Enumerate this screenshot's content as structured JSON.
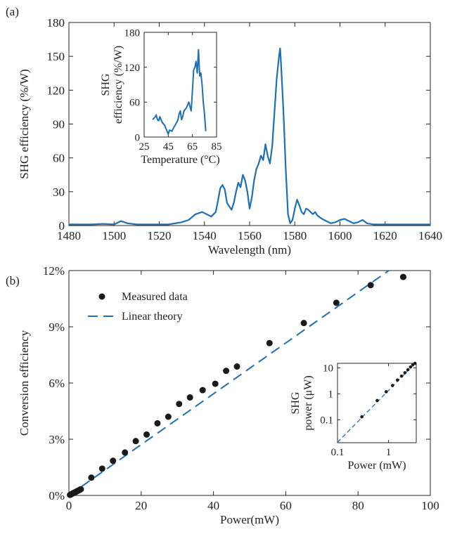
{
  "panel_labels": {
    "a": "(a)",
    "b": "(b)"
  },
  "colors": {
    "series": "#1f6fb4",
    "marker": "#1a1a1a",
    "axis": "#262626"
  },
  "chart_data": [
    {
      "id": "a-main",
      "type": "line",
      "xlabel": "Wavelength (nm)",
      "ylabel": "SHG efficiency (%/W)",
      "xlim": [
        1480,
        1640
      ],
      "ylim": [
        0,
        180
      ],
      "xticks": [
        1480,
        1500,
        1520,
        1540,
        1560,
        1580,
        1600,
        1620,
        1640
      ],
      "yticks": [
        0,
        30,
        60,
        90,
        120,
        150,
        180
      ],
      "grid": false,
      "series": [
        {
          "x": [
            1480,
            1485,
            1490,
            1495,
            1500,
            1503,
            1506,
            1510,
            1515,
            1520,
            1524,
            1527,
            1530,
            1533,
            1536,
            1539,
            1541,
            1543,
            1545,
            1546,
            1547,
            1548,
            1549,
            1550,
            1552,
            1553,
            1554,
            1555,
            1556,
            1557,
            1558,
            1559,
            1560,
            1561,
            1562,
            1563,
            1564,
            1565,
            1566,
            1567,
            1568,
            1569,
            1570,
            1571,
            1572,
            1573,
            1573.5,
            1574,
            1575,
            1576,
            1577,
            1578,
            1579,
            1580,
            1581,
            1582,
            1583,
            1584,
            1585,
            1586,
            1587,
            1588,
            1589,
            1590,
            1592,
            1594,
            1596,
            1598,
            1600,
            1602,
            1604,
            1606,
            1608,
            1610,
            1612,
            1615,
            1620,
            1625,
            1630,
            1635,
            1640
          ],
          "y": [
            1,
            1,
            1,
            1.5,
            1,
            4,
            2,
            1,
            1,
            1,
            1,
            2,
            3,
            5,
            10,
            12,
            10,
            8,
            12,
            22,
            33,
            36,
            32,
            20,
            14,
            20,
            30,
            38,
            34,
            45,
            40,
            30,
            15,
            25,
            40,
            50,
            55,
            62,
            58,
            72,
            62,
            55,
            70,
            100,
            130,
            150,
            157,
            140,
            100,
            50,
            10,
            2,
            5,
            15,
            23,
            18,
            12,
            10,
            15,
            14,
            12,
            10,
            12,
            9,
            6,
            4,
            2,
            3,
            5,
            6,
            4,
            2,
            3,
            5,
            2,
            1,
            1,
            1,
            1,
            1,
            1
          ]
        }
      ]
    },
    {
      "id": "a-inset",
      "type": "line",
      "xlabel": "Temperature (°C)",
      "ylabel": [
        "SHG",
        "efficiency (%/W)"
      ],
      "xlim": [
        25,
        85
      ],
      "ylim": [
        0,
        180
      ],
      "xticks": [
        25,
        45,
        65,
        85
      ],
      "yticks": [
        0,
        60,
        120,
        180
      ],
      "grid": false,
      "series": [
        {
          "x": [
            32,
            34,
            35,
            36,
            37,
            38,
            40,
            42,
            44,
            45,
            46,
            48,
            50,
            52,
            53,
            54,
            55,
            56,
            57,
            58,
            60,
            62,
            64,
            65,
            66,
            67,
            68,
            69,
            70,
            71,
            72,
            73,
            74,
            75,
            76
          ],
          "y": [
            30,
            34,
            38,
            30,
            28,
            35,
            25,
            20,
            10,
            5,
            12,
            10,
            18,
            25,
            30,
            40,
            45,
            30,
            35,
            45,
            50,
            60,
            45,
            80,
            115,
            120,
            130,
            110,
            150,
            105,
            110,
            90,
            60,
            40,
            10
          ]
        }
      ]
    },
    {
      "id": "b-main",
      "type": "scatter",
      "xlabel": "Power(mW)",
      "ylabel": "Conversion efficiency",
      "xlim": [
        0,
        100
      ],
      "ylim": [
        0,
        12
      ],
      "xticks": [
        0,
        20,
        40,
        60,
        80,
        100
      ],
      "yticks": [
        0,
        3,
        6,
        9,
        12
      ],
      "ytick_suffix": "%",
      "grid": false,
      "legend": {
        "position": "top-left",
        "entries": [
          "Measured data",
          "Linear theory"
        ]
      },
      "series": [
        {
          "name": "Measured data",
          "x": [
            0.3,
            0.6,
            0.9,
            1.2,
            1.5,
            1.8,
            2.1,
            2.4,
            2.7,
            3.0,
            3.3,
            6.2,
            9.2,
            12.2,
            15.5,
            18.5,
            21.5,
            24.5,
            27.5,
            30.5,
            33.5,
            37,
            40.5,
            43.5,
            46.5,
            55.5,
            65,
            74,
            83.5,
            92.5
          ],
          "y": [
            0.03,
            0.06,
            0.09,
            0.12,
            0.15,
            0.18,
            0.21,
            0.24,
            0.27,
            0.3,
            0.33,
            0.95,
            1.43,
            1.85,
            2.29,
            2.9,
            3.25,
            3.85,
            4.2,
            4.88,
            5.23,
            5.62,
            5.96,
            6.65,
            6.88,
            8.13,
            9.2,
            10.28,
            11.22,
            11.66
          ]
        },
        {
          "name": "Linear theory",
          "x": [
            0,
            88.5
          ],
          "y": [
            0,
            12
          ]
        }
      ]
    },
    {
      "id": "b-inset",
      "type": "scatter",
      "xscale": "log",
      "yscale": "log",
      "xlabel": "Power (mW)",
      "ylabel": [
        "SHG",
        "power (μW)"
      ],
      "xlim": [
        0.1,
        3.5
      ],
      "ylim": [
        0.013,
        15
      ],
      "xticks": [
        0.1,
        1
      ],
      "xticklabels": [
        "0.1",
        "1"
      ],
      "yticks": [
        0.1,
        1,
        10
      ],
      "yticklabels": [
        "0.1",
        "1",
        "10"
      ],
      "grid": false,
      "series": [
        {
          "name": "Measured data",
          "x": [
            0.3,
            0.6,
            0.9,
            1.2,
            1.5,
            1.8,
            2.1,
            2.4,
            2.7,
            3.0,
            3.3
          ],
          "y": [
            0.13,
            0.55,
            1.2,
            2.1,
            3.4,
            4.8,
            6.5,
            8.5,
            10.8,
            13.2,
            15
          ]
        },
        {
          "name": "Linear theory",
          "x": [
            0.1,
            3.5
          ],
          "y": [
            0.0135,
            16.5
          ]
        }
      ]
    }
  ]
}
